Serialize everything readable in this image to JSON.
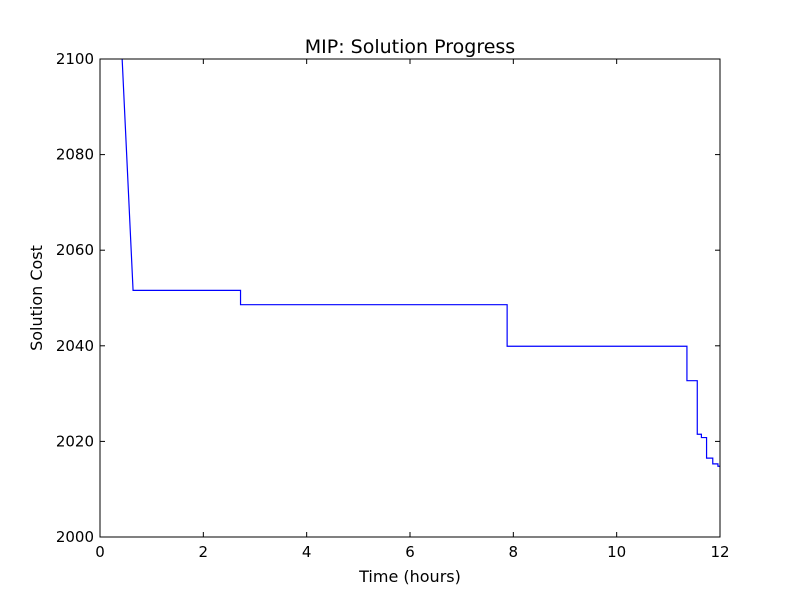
{
  "chart_data": {
    "type": "line",
    "title": "MIP: Solution Progress",
    "xlabel": "Time (hours)",
    "ylabel": "Solution Cost",
    "xlim": [
      0,
      12
    ],
    "ylim": [
      2000,
      2100
    ],
    "xticks": [
      "0",
      "2",
      "4",
      "6",
      "8",
      "10",
      "12"
    ],
    "yticks": [
      "2000",
      "2020",
      "2040",
      "2060",
      "2080",
      "2100"
    ],
    "grid": false,
    "series": [
      {
        "color": "#0000ff",
        "step": "post",
        "x": [
          0.42,
          0.64,
          2.72,
          7.88,
          11.36,
          11.56,
          11.64,
          11.74,
          11.86,
          11.96,
          12.0
        ],
        "values": [
          2102,
          2051.6,
          2048.6,
          2039.9,
          2032.7,
          2021.5,
          2020.8,
          2016.5,
          2015.3,
          2014.8,
          2014.8
        ]
      }
    ]
  }
}
